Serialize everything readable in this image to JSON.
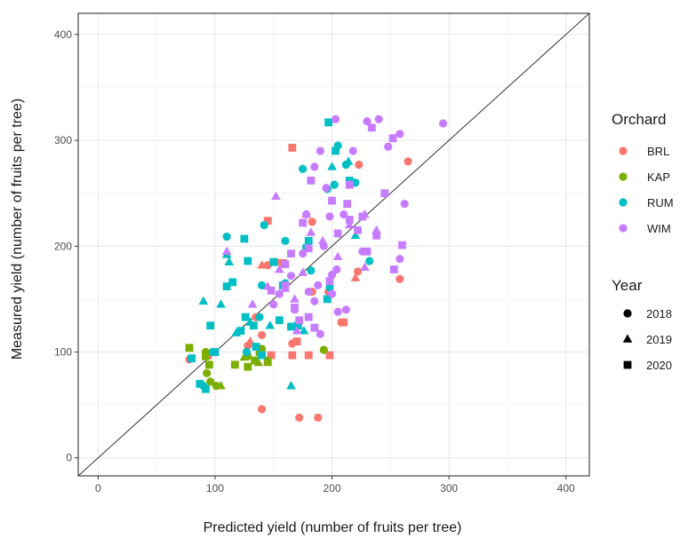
{
  "chart_data": {
    "type": "scatter",
    "title": "",
    "xlabel": "Predicted yield (number of fruits per tree)",
    "ylabel": "Measured yield (number of fruits per tree)",
    "xlim": [
      -17,
      420
    ],
    "ylim": [
      -17,
      420
    ],
    "xticks": [
      "0",
      "100",
      "200",
      "300",
      "400"
    ],
    "yticks": [
      "0",
      "100",
      "200",
      "300",
      "400"
    ],
    "grid": true,
    "reference_line": "y = x",
    "legend_color": {
      "title": "Orchard",
      "entries": [
        {
          "name": "BRL",
          "color": "#f8766d"
        },
        {
          "name": "KAP",
          "color": "#7cae00"
        },
        {
          "name": "RUM",
          "color": "#00bfc4"
        },
        {
          "name": "WIM",
          "color": "#c77cff"
        }
      ]
    },
    "legend_shape": {
      "title": "Year",
      "entries": [
        {
          "name": "2018",
          "shape": "circle"
        },
        {
          "name": "2019",
          "shape": "triangle"
        },
        {
          "name": "2020",
          "shape": "square"
        }
      ]
    },
    "legend_position": "right",
    "series": [
      {
        "name": "BRL",
        "color": "#f8766d",
        "points": [
          [
            140,
            46,
            "circle"
          ],
          [
            172,
            38,
            "circle"
          ],
          [
            188,
            38,
            "circle"
          ],
          [
            265,
            280,
            "circle"
          ],
          [
            258,
            169,
            "circle"
          ],
          [
            222,
            176,
            "circle"
          ],
          [
            208,
            128,
            "circle"
          ],
          [
            183,
            157,
            "circle"
          ],
          [
            145,
            182,
            "circle"
          ],
          [
            152,
            185,
            "circle"
          ],
          [
            158,
            184,
            "circle"
          ],
          [
            183,
            223,
            "circle"
          ],
          [
            223,
            277,
            "circle"
          ],
          [
            135,
            133,
            "circle"
          ],
          [
            128,
            106,
            "circle"
          ],
          [
            140,
            116,
            "circle"
          ],
          [
            166,
            108,
            "circle"
          ],
          [
            197,
            157,
            "circle"
          ],
          [
            78,
            93,
            "circle"
          ],
          [
            145,
            92,
            "triangle"
          ],
          [
            220,
            170,
            "triangle"
          ],
          [
            140,
            182,
            "triangle"
          ],
          [
            178,
            230,
            "triangle"
          ],
          [
            130,
            110,
            "triangle"
          ],
          [
            166,
            293,
            "square"
          ],
          [
            145,
            224,
            "square"
          ],
          [
            158,
            184,
            "square"
          ],
          [
            148,
            97,
            "square"
          ],
          [
            166,
            97,
            "square"
          ],
          [
            180,
            97,
            "square"
          ],
          [
            198,
            97,
            "square"
          ],
          [
            170,
            110,
            "square"
          ],
          [
            210,
            128,
            "square"
          ],
          [
            94,
            97,
            "square"
          ]
        ]
      },
      {
        "name": "KAP",
        "color": "#7cae00",
        "points": [
          [
            96,
            72,
            "circle"
          ],
          [
            101,
            68,
            "circle"
          ],
          [
            93,
            80,
            "circle"
          ],
          [
            128,
            96,
            "circle"
          ],
          [
            140,
            103,
            "circle"
          ],
          [
            145,
            92,
            "circle"
          ],
          [
            92,
            100,
            "circle"
          ],
          [
            193,
            102,
            "circle"
          ],
          [
            105,
            68,
            "triangle"
          ],
          [
            125,
            95,
            "triangle"
          ],
          [
            137,
            90,
            "triangle"
          ],
          [
            145,
            90,
            "triangle"
          ],
          [
            78,
            104,
            "square"
          ],
          [
            95,
            88,
            "square"
          ],
          [
            92,
            96,
            "square"
          ],
          [
            117,
            88,
            "square"
          ],
          [
            128,
            86,
            "square"
          ],
          [
            134,
            92,
            "square"
          ],
          [
            138,
            100,
            "square"
          ]
        ]
      },
      {
        "name": "RUM",
        "color": "#00bfc4",
        "points": [
          [
            110,
            209,
            "circle"
          ],
          [
            140,
            163,
            "circle"
          ],
          [
            160,
            205,
            "circle"
          ],
          [
            205,
            295,
            "circle"
          ],
          [
            212,
            277,
            "circle"
          ],
          [
            220,
            260,
            "circle"
          ],
          [
            202,
            258,
            "circle"
          ],
          [
            175,
            273,
            "circle"
          ],
          [
            232,
            186,
            "circle"
          ],
          [
            196,
            254,
            "circle"
          ],
          [
            160,
            165,
            "circle"
          ],
          [
            182,
            177,
            "circle"
          ],
          [
            198,
            161,
            "circle"
          ],
          [
            138,
            133,
            "circle"
          ],
          [
            127,
            100,
            "circle"
          ],
          [
            90,
            68,
            "circle"
          ],
          [
            98,
            100,
            "circle"
          ],
          [
            142,
            220,
            "circle"
          ],
          [
            90,
            148,
            "triangle"
          ],
          [
            105,
            145,
            "triangle"
          ],
          [
            112,
            185,
            "triangle"
          ],
          [
            118,
            118,
            "triangle"
          ],
          [
            130,
            128,
            "triangle"
          ],
          [
            147,
            125,
            "triangle"
          ],
          [
            165,
            68,
            "triangle"
          ],
          [
            200,
            275,
            "triangle"
          ],
          [
            214,
            280,
            "triangle"
          ],
          [
            176,
            120,
            "triangle"
          ],
          [
            110,
            192,
            "triangle"
          ],
          [
            220,
            210,
            "triangle"
          ],
          [
            197,
            317,
            "square"
          ],
          [
            203,
            290,
            "square"
          ],
          [
            215,
            262,
            "square"
          ],
          [
            125,
            207,
            "square"
          ],
          [
            180,
            205,
            "square"
          ],
          [
            178,
            198,
            "square"
          ],
          [
            150,
            185,
            "square"
          ],
          [
            128,
            186,
            "square"
          ],
          [
            115,
            166,
            "square"
          ],
          [
            158,
            163,
            "square"
          ],
          [
            110,
            162,
            "square"
          ],
          [
            122,
            120,
            "square"
          ],
          [
            126,
            133,
            "square"
          ],
          [
            133,
            125,
            "square"
          ],
          [
            155,
            130,
            "square"
          ],
          [
            165,
            124,
            "square"
          ],
          [
            171,
            125,
            "square"
          ],
          [
            96,
            125,
            "square"
          ],
          [
            135,
            105,
            "square"
          ],
          [
            140,
            97,
            "square"
          ],
          [
            87,
            70,
            "square"
          ],
          [
            92,
            65,
            "square"
          ],
          [
            80,
            94,
            "square"
          ],
          [
            100,
            100,
            "square"
          ],
          [
            196,
            150,
            "square"
          ]
        ]
      },
      {
        "name": "WIM",
        "color": "#c77cff",
        "points": [
          [
            203,
            320,
            "circle"
          ],
          [
            240,
            320,
            "circle"
          ],
          [
            295,
            316,
            "circle"
          ],
          [
            258,
            306,
            "circle"
          ],
          [
            248,
            294,
            "circle"
          ],
          [
            218,
            290,
            "circle"
          ],
          [
            262,
            240,
            "circle"
          ],
          [
            258,
            188,
            "circle"
          ],
          [
            226,
            195,
            "circle"
          ],
          [
            198,
            228,
            "circle"
          ],
          [
            210,
            230,
            "circle"
          ],
          [
            193,
            200,
            "circle"
          ],
          [
            188,
            163,
            "circle"
          ],
          [
            180,
            157,
            "circle"
          ],
          [
            185,
            148,
            "circle"
          ],
          [
            165,
            172,
            "circle"
          ],
          [
            155,
            155,
            "circle"
          ],
          [
            178,
            230,
            "circle"
          ],
          [
            200,
            173,
            "circle"
          ],
          [
            204,
            178,
            "circle"
          ],
          [
            200,
            155,
            "circle"
          ],
          [
            212,
            140,
            "circle"
          ],
          [
            195,
            255,
            "circle"
          ],
          [
            185,
            275,
            "circle"
          ],
          [
            190,
            290,
            "circle"
          ],
          [
            168,
            140,
            "circle"
          ],
          [
            150,
            145,
            "circle"
          ],
          [
            175,
            193,
            "circle"
          ],
          [
            190,
            117,
            "circle"
          ],
          [
            205,
            138,
            "circle"
          ],
          [
            230,
            318,
            "circle"
          ],
          [
            152,
            247,
            "triangle"
          ],
          [
            110,
            195,
            "triangle"
          ],
          [
            132,
            145,
            "triangle"
          ],
          [
            145,
            162,
            "triangle"
          ],
          [
            155,
            178,
            "triangle"
          ],
          [
            160,
            160,
            "triangle"
          ],
          [
            168,
            150,
            "triangle"
          ],
          [
            175,
            175,
            "triangle"
          ],
          [
            182,
            213,
            "triangle"
          ],
          [
            192,
            205,
            "triangle"
          ],
          [
            205,
            190,
            "triangle"
          ],
          [
            215,
            220,
            "triangle"
          ],
          [
            228,
            230,
            "triangle"
          ],
          [
            238,
            215,
            "triangle"
          ],
          [
            228,
            180,
            "triangle"
          ],
          [
            170,
            120,
            "triangle"
          ],
          [
            234,
            312,
            "square"
          ],
          [
            252,
            302,
            "square"
          ],
          [
            215,
            258,
            "square"
          ],
          [
            182,
            262,
            "square"
          ],
          [
            200,
            243,
            "square"
          ],
          [
            215,
            225,
            "square"
          ],
          [
            222,
            215,
            "square"
          ],
          [
            226,
            228,
            "square"
          ],
          [
            230,
            195,
            "square"
          ],
          [
            238,
            210,
            "square"
          ],
          [
            205,
            212,
            "square"
          ],
          [
            175,
            222,
            "square"
          ],
          [
            180,
            198,
            "square"
          ],
          [
            160,
            183,
            "square"
          ],
          [
            148,
            158,
            "square"
          ],
          [
            168,
            142,
            "square"
          ],
          [
            180,
            133,
            "square"
          ],
          [
            172,
            130,
            "square"
          ],
          [
            160,
            163,
            "square"
          ],
          [
            165,
            193,
            "square"
          ],
          [
            198,
            167,
            "square"
          ],
          [
            185,
            123,
            "square"
          ],
          [
            260,
            201,
            "square"
          ],
          [
            253,
            178,
            "square"
          ],
          [
            213,
            240,
            "square"
          ],
          [
            245,
            250,
            "square"
          ]
        ]
      }
    ]
  }
}
